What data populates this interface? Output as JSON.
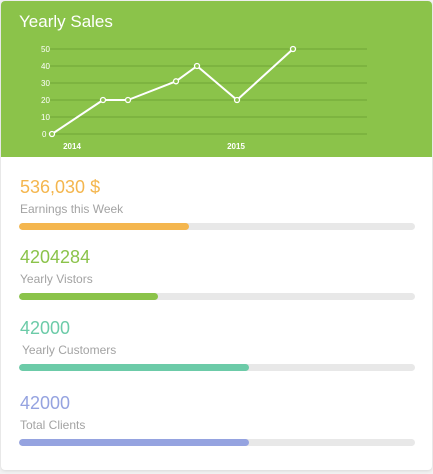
{
  "widget": {
    "title": "Yearly Sales",
    "header_color": "#8bc34a"
  },
  "chart_data": {
    "type": "line",
    "x_ticks": [
      "2014",
      "2015"
    ],
    "y_ticks": [
      0,
      10,
      20,
      30,
      40,
      50
    ],
    "ylim": [
      0,
      50
    ],
    "points": [
      0,
      20,
      20,
      31,
      40,
      20,
      50
    ],
    "grid": true,
    "line_color": "#ffffff"
  },
  "stats": [
    {
      "value": "536,030 $",
      "label": "Earnings this Week",
      "progress": 0.43,
      "color": "#f4b64e"
    },
    {
      "value": "4204284",
      "label": "Yearly Vistors",
      "progress": 0.35,
      "color": "#8bc34a"
    },
    {
      "value": "42000",
      "label": "Yearly Customers",
      "progress": 0.58,
      "color": "#6ccba8"
    },
    {
      "value": "42000",
      "label": "Total Clients",
      "progress": 0.58,
      "color": "#95a3e0"
    }
  ]
}
